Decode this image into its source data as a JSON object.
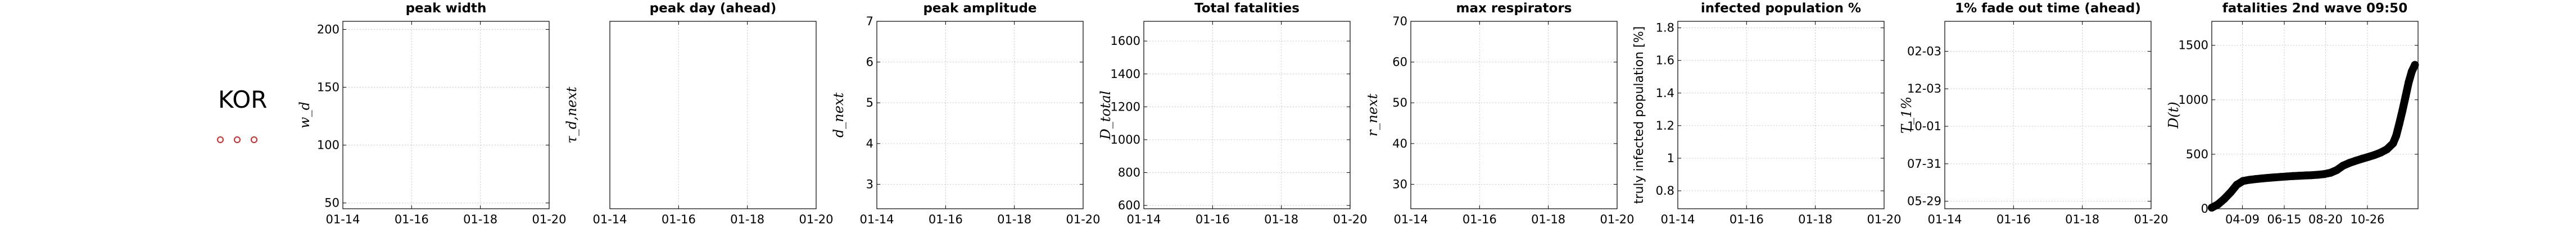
{
  "country": {
    "code": "KOR",
    "markers": 3,
    "marker_color": "#d62728"
  },
  "chart_data": [
    {
      "type": "line",
      "title": "peak width",
      "ylabel": "w_d",
      "ylabel_italic": true,
      "xticks": [
        "01-14",
        "01-16",
        "01-18",
        "01-20"
      ],
      "ylim": [
        45,
        207
      ],
      "yticks": [
        50,
        100,
        150,
        200
      ],
      "series": []
    },
    {
      "type": "line",
      "title": "peak day (ahead)",
      "ylabel": "τ_d,next",
      "ylabel_italic": true,
      "xticks": [
        "01-14",
        "01-16",
        "01-18",
        "01-20"
      ],
      "ylim": [
        0,
        1
      ],
      "yticks": [],
      "series": []
    },
    {
      "type": "line",
      "title": "peak amplitude",
      "ylabel": "d_next",
      "ylabel_italic": true,
      "xticks": [
        "01-14",
        "01-16",
        "01-18",
        "01-20"
      ],
      "ylim": [
        2.4,
        7.0
      ],
      "yticks": [
        3,
        4,
        5,
        6,
        7
      ],
      "series": []
    },
    {
      "type": "line",
      "title": "Total fatalities",
      "ylabel": "D_total",
      "ylabel_italic": true,
      "xticks": [
        "01-14",
        "01-16",
        "01-18",
        "01-20"
      ],
      "ylim": [
        580,
        1720
      ],
      "yticks": [
        600,
        800,
        1000,
        1200,
        1400,
        1600
      ],
      "series": []
    },
    {
      "type": "line",
      "title": "max respirators",
      "ylabel": "r_next",
      "ylabel_italic": true,
      "xticks": [
        "01-14",
        "01-16",
        "01-18",
        "01-20"
      ],
      "ylim": [
        24,
        70
      ],
      "yticks": [
        30,
        40,
        50,
        60,
        70
      ],
      "series": []
    },
    {
      "type": "line",
      "title": "infected population %",
      "ylabel": "truly infected population [%]",
      "ylabel_italic": false,
      "xticks": [
        "01-14",
        "01-16",
        "01-18",
        "01-20"
      ],
      "ylim": [
        0.69,
        1.84
      ],
      "yticks": [
        0.8,
        1,
        1.2,
        1.4,
        1.6,
        1.8
      ],
      "series": []
    },
    {
      "type": "line",
      "title": "1% fade out time (ahead)",
      "ylabel": "T_1%",
      "ylabel_italic": true,
      "xticks": [
        "01-14",
        "01-16",
        "01-18",
        "01-20"
      ],
      "ylim": [
        0,
        5
      ],
      "yticks_labels": [
        "05-29",
        "07-31",
        "10-01",
        "12-03",
        "02-03"
      ],
      "yticks_pos": [
        0.2,
        1.2,
        2.2,
        3.2,
        4.2
      ],
      "series": []
    },
    {
      "type": "scatter",
      "title": "fatalities 2nd wave 09:50",
      "ylabel": "D(t)",
      "ylabel_italic": true,
      "xticks": [
        "04-09",
        "06-15",
        "08-20",
        "10-26"
      ],
      "xticks_pos": [
        49,
        116,
        182,
        249
      ],
      "xlim": [
        0,
        330
      ],
      "ylim": [
        0,
        1720
      ],
      "yticks": [
        0,
        500,
        1000,
        1500
      ],
      "series": [
        {
          "x": [
            0,
            10,
            20,
            30,
            40,
            50,
            60,
            70,
            80,
            90,
            100,
            110,
            120,
            130,
            140,
            150,
            160,
            170,
            180,
            190,
            200,
            210,
            220,
            230,
            240,
            250,
            260,
            270,
            280,
            290,
            295,
            300,
            305,
            310,
            315,
            320,
            325
          ],
          "y": [
            10,
            40,
            90,
            150,
            220,
            255,
            265,
            272,
            278,
            283,
            288,
            292,
            296,
            300,
            303,
            306,
            308,
            312,
            318,
            330,
            355,
            395,
            420,
            440,
            458,
            475,
            493,
            515,
            545,
            600,
            670,
            780,
            900,
            1030,
            1160,
            1260,
            1320
          ]
        }
      ]
    }
  ]
}
